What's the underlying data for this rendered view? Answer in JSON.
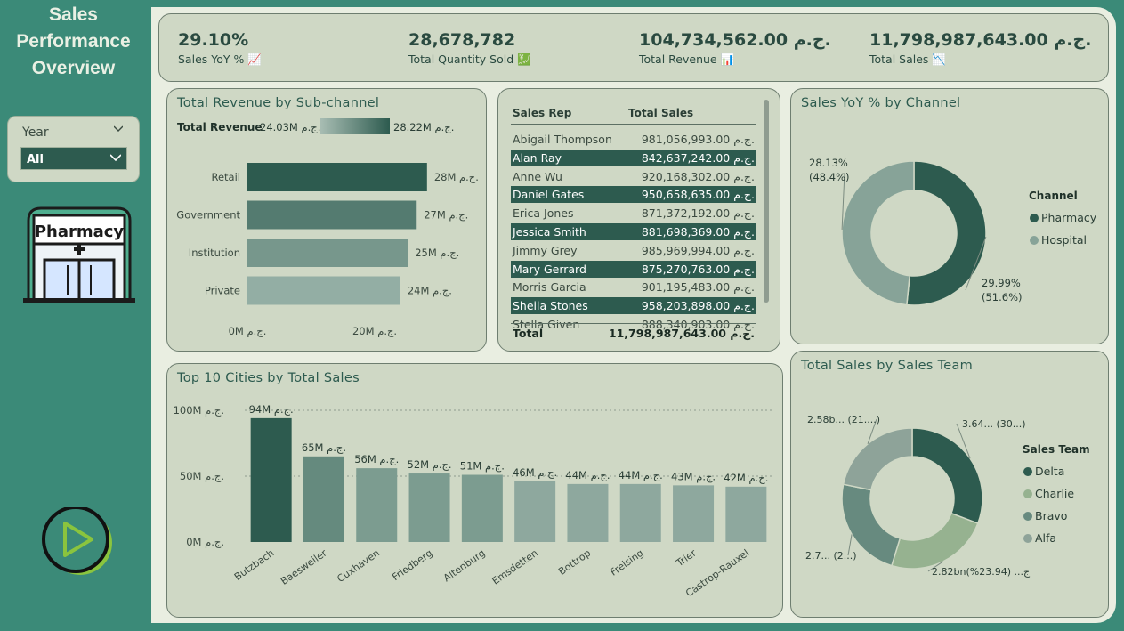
{
  "title": [
    "Sales",
    "Performance",
    "Overview"
  ],
  "slicer": {
    "label": "Year",
    "value": "All"
  },
  "icons": {
    "pharmacy_sign": "Pharmacy",
    "play": "play-icon"
  },
  "kpis": [
    {
      "value": "29.10%",
      "label": "Sales YoY %",
      "icon": "📈"
    },
    {
      "value": "28,678,782",
      "label": "Total Quantity Sold",
      "icon": "💹"
    },
    {
      "value": "104,734,562.00 ج.م.",
      "label": "Total Revenue",
      "icon": "📊"
    },
    {
      "value": "11,798,987,643.00 ج.م.",
      "label": "Total Sales",
      "icon": "📉"
    }
  ],
  "colors": {
    "dark": "#2d5b4f",
    "accent": "#8ab37e",
    "bg": "#3b8a78",
    "card": "#cfd8c5"
  },
  "table": {
    "headers": [
      "Sales Rep",
      "Total Sales"
    ],
    "rows": [
      {
        "name": "Abigail Thompson",
        "value": "981,056,993.00 ج.م."
      },
      {
        "name": "Alan Ray",
        "value": "842,637,242.00 ج.م."
      },
      {
        "name": "Anne Wu",
        "value": "920,168,302.00 ج.م."
      },
      {
        "name": "Daniel Gates",
        "value": "950,658,635.00 ج.م."
      },
      {
        "name": "Erica Jones",
        "value": "871,372,192.00 ج.م."
      },
      {
        "name": "Jessica Smith",
        "value": "881,698,369.00 ج.م."
      },
      {
        "name": "Jimmy Grey",
        "value": "985,969,994.00 ج.م."
      },
      {
        "name": "Mary Gerrard",
        "value": "875,270,763.00 ج.م."
      },
      {
        "name": "Morris Garcia",
        "value": "901,195,483.00 ج.م."
      },
      {
        "name": "Sheila Stones",
        "value": "958,203,898.00 ج.م."
      },
      {
        "name": "Stella Given",
        "value": "888,340,903.00 ج.م."
      }
    ],
    "total_label": "Total",
    "total_value": "11,798,987,643.00 ج.م."
  },
  "chart_data": [
    {
      "id": "subchannel",
      "type": "bar",
      "title": "Total Revenue by Sub-channel",
      "legend_title": "Total Revenue",
      "legend_min": "24.03M ج.م.",
      "legend_max": "28.22M ج.م.",
      "categories": [
        "Retail",
        "Government",
        "Institution",
        "Private"
      ],
      "values": [
        28.22,
        26.6,
        25.2,
        24.03
      ],
      "data_labels": [
        "28M ج.م.",
        "27M ج.م.",
        "25M ج.م.",
        "24M ج.م."
      ],
      "xticks": [
        0,
        20
      ],
      "xtick_labels": [
        "0M ج.م.",
        "20M ج.م."
      ],
      "xlim": [
        0,
        33
      ]
    },
    {
      "id": "cities",
      "type": "bar",
      "title": "Top 10 Cities by Total Sales",
      "categories": [
        "Butzbach",
        "Baesweiler",
        "Cuxhaven",
        "Friedberg",
        "Altenburg",
        "Emsdetten",
        "Bottrop",
        "Freising",
        "Trier",
        "Castrop-Rauxel"
      ],
      "values": [
        94,
        65,
        56,
        52,
        51,
        46,
        44,
        44,
        43,
        42
      ],
      "data_labels": [
        "94M ج.م.",
        "65M ج.م.",
        "56M ج.م.",
        "52M ج.م.",
        "51M ج.م.",
        "46M ج.م.",
        "44M ج.م.",
        "44M ج.م.",
        "43M ج.م.",
        "42M ج.م."
      ],
      "yticks": [
        0,
        50,
        100
      ],
      "ytick_labels": [
        "0M ج.م.",
        "50M ج.م.",
        "100M ج.م."
      ],
      "ylim": [
        0,
        100
      ],
      "grid": true
    },
    {
      "id": "channel",
      "type": "pie",
      "title": "Sales YoY % by Channel",
      "legend_title": "Channel",
      "labels": [
        "Pharmacy",
        "Hospital"
      ],
      "values": [
        51.6,
        48.4
      ],
      "data_labels": [
        [
          "29.99%",
          "(51.6%)"
        ],
        [
          "28.13%",
          "(48.4%)"
        ]
      ],
      "colors": [
        "#2d5b4f",
        "#87a398"
      ]
    },
    {
      "id": "team",
      "type": "pie",
      "title": "Total Sales by Sales Team",
      "legend_title": "Sales Team",
      "labels": [
        "Delta",
        "Charlie",
        "Bravo",
        "Alfa"
      ],
      "values": [
        30.8,
        23.94,
        23.5,
        21.8
      ],
      "data_labels": [
        "3.64... (30...)",
        "2.82bnج... (23.94%)",
        "2.7... (2...)",
        "2.58b... (21....)"
      ],
      "colors": [
        "#2d5b4f",
        "#96b290",
        "#678a7f",
        "#8ea399"
      ]
    }
  ]
}
